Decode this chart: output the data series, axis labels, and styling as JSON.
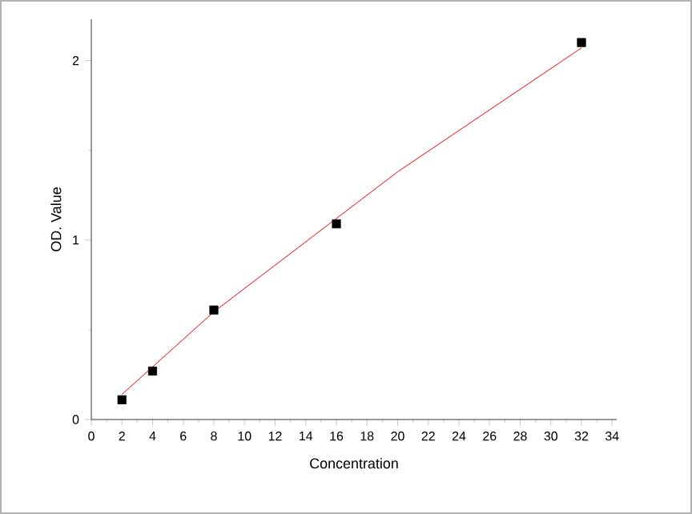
{
  "chart_data": {
    "type": "scatter",
    "xlabel": "Concentration",
    "ylabel": "OD. Value",
    "xlim": [
      0,
      34.3
    ],
    "ylim": [
      0,
      2.23
    ],
    "xticks": [
      0,
      2,
      4,
      6,
      8,
      10,
      12,
      14,
      16,
      18,
      20,
      22,
      24,
      26,
      28,
      30,
      32,
      34
    ],
    "yticks": [
      0,
      1,
      2
    ],
    "marker": "square",
    "grid": false,
    "series": [
      {
        "color": "#000000",
        "x": [
          2,
          4,
          8,
          16,
          32
        ],
        "values": [
          0.11,
          0.27,
          0.61,
          1.09,
          2.1
        ]
      },
      {
        "type": "line",
        "color": "#ff0000",
        "marker": "none",
        "x": [
          2,
          8,
          12,
          16,
          20,
          24,
          28,
          32
        ],
        "values": [
          0.14,
          0.6,
          0.86,
          1.12,
          1.38,
          1.61,
          1.84,
          2.07
        ]
      }
    ]
  }
}
